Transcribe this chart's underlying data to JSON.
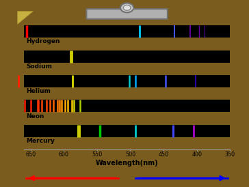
{
  "background_color": "#f5f0a0",
  "wood_color": "#7a5c1e",
  "elements": [
    "Hydrogen",
    "Sodium",
    "Helium",
    "Neon",
    "Mercury"
  ],
  "wavelength_min": 350,
  "wavelength_max": 660,
  "xlabel": "Wavelength(nm)",
  "x_ticks": [
    650,
    600,
    550,
    500,
    450,
    400,
    350
  ],
  "spectra": {
    "Hydrogen": [
      {
        "wl": 656,
        "color": "#ff0000",
        "lw": 2.5
      },
      {
        "wl": 486,
        "color": "#00ccff",
        "lw": 2.0
      },
      {
        "wl": 434,
        "color": "#4455ff",
        "lw": 1.5
      },
      {
        "wl": 410,
        "color": "#7700bb",
        "lw": 1.2
      },
      {
        "wl": 397,
        "color": "#6600aa",
        "lw": 1.0
      },
      {
        "wl": 388,
        "color": "#5500aa",
        "lw": 0.8
      }
    ],
    "Sodium": [
      {
        "wl": 589,
        "color": "#cccc00",
        "lw": 3.5
      }
    ],
    "Helium": [
      {
        "wl": 668,
        "color": "#ff2200",
        "lw": 2.0
      },
      {
        "wl": 587,
        "color": "#dddd00",
        "lw": 2.0
      },
      {
        "wl": 502,
        "color": "#00cccc",
        "lw": 1.8
      },
      {
        "wl": 492,
        "color": "#00aaff",
        "lw": 1.8
      },
      {
        "wl": 447,
        "color": "#4455ff",
        "lw": 1.8
      },
      {
        "wl": 402,
        "color": "#3300cc",
        "lw": 1.2
      }
    ],
    "Neon": [
      {
        "wl": 659,
        "color": "#ff2200",
        "lw": 1.8
      },
      {
        "wl": 650,
        "color": "#ff2200",
        "lw": 1.8
      },
      {
        "wl": 640,
        "color": "#ff3300",
        "lw": 1.8
      },
      {
        "wl": 638,
        "color": "#ff3300",
        "lw": 1.8
      },
      {
        "wl": 633,
        "color": "#ff4400",
        "lw": 1.8
      },
      {
        "wl": 626,
        "color": "#ff4400",
        "lw": 1.8
      },
      {
        "wl": 621,
        "color": "#ff5500",
        "lw": 1.8
      },
      {
        "wl": 616,
        "color": "#ff6600",
        "lw": 1.8
      },
      {
        "wl": 610,
        "color": "#ff7700",
        "lw": 1.8
      },
      {
        "wl": 607,
        "color": "#ff8800",
        "lw": 1.8
      },
      {
        "wl": 603,
        "color": "#ff9900",
        "lw": 1.8
      },
      {
        "wl": 598,
        "color": "#ffaa00",
        "lw": 1.8
      },
      {
        "wl": 594,
        "color": "#ffbb00",
        "lw": 1.8
      },
      {
        "wl": 588,
        "color": "#ffcc00",
        "lw": 1.8
      },
      {
        "wl": 585,
        "color": "#cccc00",
        "lw": 1.8
      },
      {
        "wl": 576,
        "color": "#aacc00",
        "lw": 1.8
      }
    ],
    "Mercury": [
      {
        "wl": 579,
        "color": "#cccc00",
        "lw": 2.2
      },
      {
        "wl": 577,
        "color": "#cccc00",
        "lw": 2.2
      },
      {
        "wl": 546,
        "color": "#00cc00",
        "lw": 2.5
      },
      {
        "wl": 492,
        "color": "#00cccc",
        "lw": 2.0
      },
      {
        "wl": 436,
        "color": "#4444ff",
        "lw": 2.2
      },
      {
        "wl": 405,
        "color": "#aa00cc",
        "lw": 2.0
      }
    ]
  }
}
